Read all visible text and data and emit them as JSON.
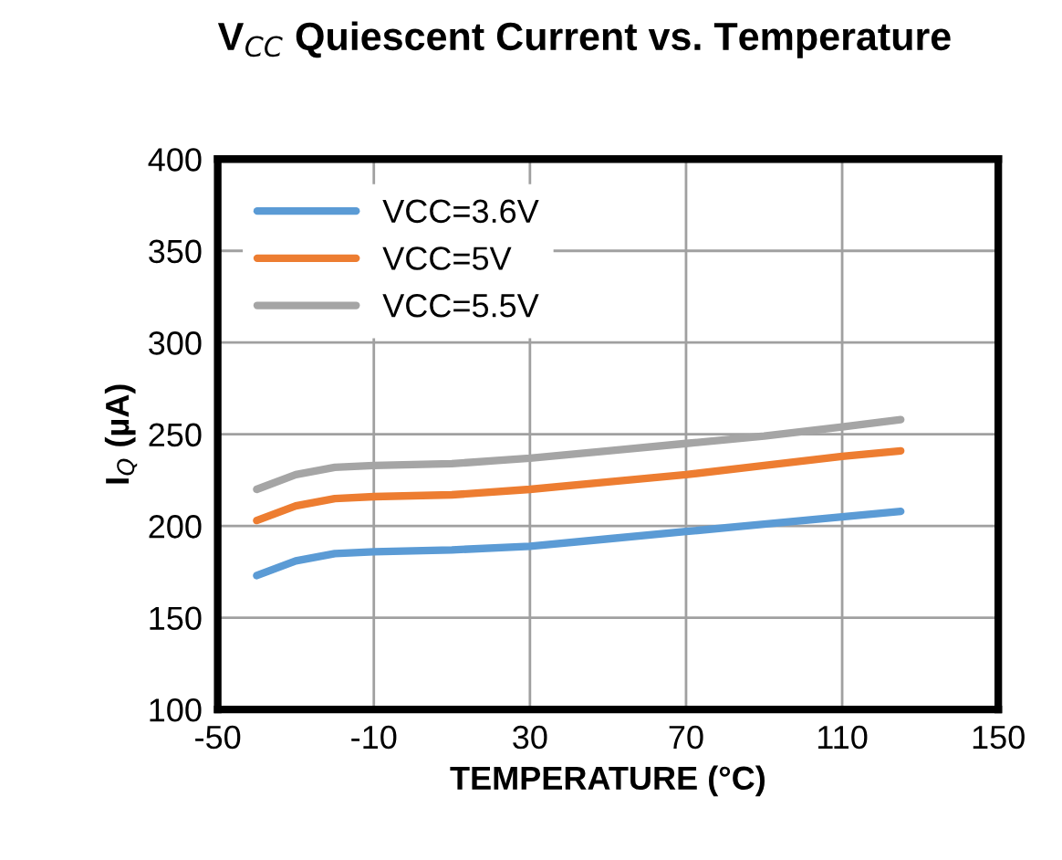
{
  "chart_data": {
    "type": "line",
    "title": "V$_{CC}$ Quiescent Current vs. Temperature",
    "xlabel": "TEMPERATURE (°C)",
    "ylabel": "I$_{Q}$ (µA)",
    "x": [
      -40,
      -30,
      -20,
      -10,
      10,
      30,
      50,
      70,
      90,
      110,
      125
    ],
    "series": [
      {
        "name": "VCC=3.6V",
        "color": "#5b9bd5",
        "values": [
          173,
          181,
          185,
          186,
          187,
          189,
          193,
          197,
          201,
          205,
          208
        ]
      },
      {
        "name": "VCC=5V",
        "color": "#ed7d31",
        "values": [
          203,
          211,
          215,
          216,
          217,
          220,
          224,
          228,
          233,
          238,
          241
        ]
      },
      {
        "name": "VCC=5.5V",
        "color": "#a5a5a5",
        "values": [
          220,
          228,
          232,
          233,
          234,
          237,
          241,
          245,
          249,
          254,
          258
        ]
      }
    ],
    "xlim": [
      -50,
      150
    ],
    "xticks": [
      -50,
      -10,
      30,
      70,
      110,
      150
    ],
    "ylim": [
      100,
      400
    ],
    "yticks": [
      100,
      150,
      200,
      250,
      300,
      350,
      400
    ],
    "grid": true,
    "legend": "top left",
    "marker": "none",
    "line_style": "solid"
  }
}
